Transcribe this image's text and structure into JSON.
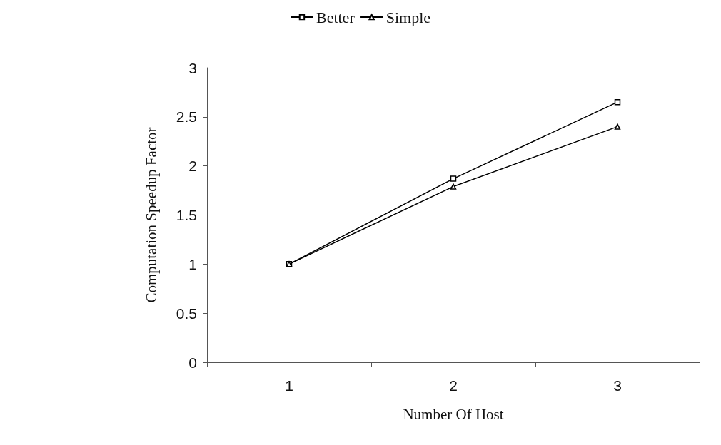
{
  "chart_data": {
    "type": "line",
    "xlabel": "Number Of Host",
    "ylabel": "Computation Speedup Factor",
    "categories": [
      "1",
      "2",
      "3"
    ],
    "series": [
      {
        "name": "Better",
        "color": "#000000",
        "marker": "square",
        "values": [
          1,
          1.87,
          2.65
        ]
      },
      {
        "name": "Simple",
        "color": "#000000",
        "marker": "triangle",
        "values": [
          1,
          1.79,
          2.4
        ]
      }
    ],
    "ylim": [
      0,
      3
    ],
    "yticks": [
      0,
      0.5,
      1,
      1.5,
      2,
      2.5,
      3
    ],
    "grid": false,
    "legend": "top",
    "line_style": "solid"
  }
}
